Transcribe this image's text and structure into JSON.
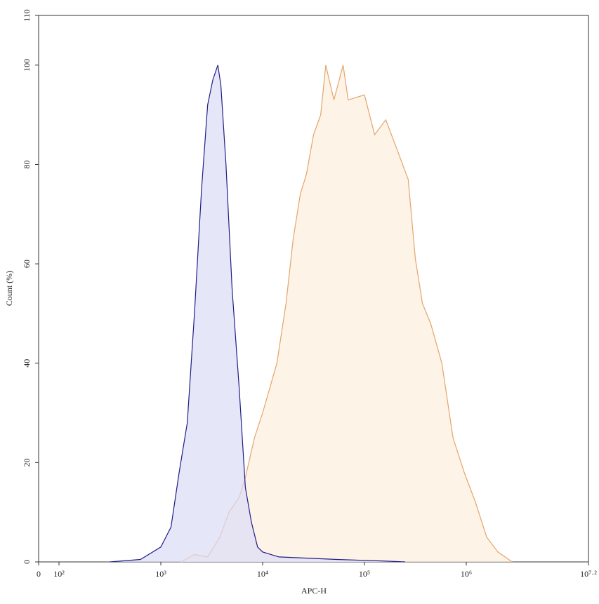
{
  "chart_data": {
    "type": "histogram-overlay",
    "x_label": "APC-H",
    "y_label": "Count (%)",
    "xscale": "log",
    "xlim": [
      0,
      15848932
    ],
    "ylim": [
      0,
      110
    ],
    "xticks": [
      0,
      {
        "value": 100,
        "label": "10²"
      },
      {
        "value": 1000,
        "label": "10³"
      },
      {
        "value": 10000,
        "label": "10⁴"
      },
      {
        "value": 100000,
        "label": "10⁵"
      },
      {
        "value": 1000000,
        "label": "10⁶"
      },
      {
        "value": 15848932,
        "label": "10⁷·²"
      }
    ],
    "yticks": [
      0,
      20,
      40,
      60,
      80,
      100,
      110
    ],
    "series": [
      {
        "color": "#e3a56c",
        "fill": "#fdeedd",
        "x": [
          1585,
          2138,
          2884,
          3802,
          4677,
          5888,
          6761,
          8318,
          10000,
          11749,
          13804,
          16982,
          19953,
          23442,
          26915,
          31623,
          37154,
          41687,
          50119,
          61660,
          69183,
          100000,
          125893,
          162181,
          208930,
          269153,
          316228,
          371535,
          446684,
          575440,
          741310,
          954993,
          1230269,
          1584893,
          2041738,
          2818383
        ],
        "values": [
          0,
          1.5,
          1,
          5,
          10,
          13,
          17,
          25,
          30,
          35,
          40,
          52,
          65,
          74,
          78,
          86,
          90,
          100,
          93,
          100,
          93,
          94,
          86,
          89,
          83,
          77,
          61,
          52,
          48,
          40,
          25,
          18,
          12,
          5,
          2,
          0
        ]
      },
      {
        "color": "#1f1f86",
        "fill": "#dcdcf7",
        "x": [
          316,
          631,
          1000,
          1259,
          1514,
          1820,
          2138,
          2512,
          2884,
          3236,
          3631,
          3890,
          4365,
          5012,
          5888,
          6761,
          7762,
          8913,
          10000,
          14454,
          53703,
          147911,
          251189
        ],
        "values": [
          0,
          0.5,
          3,
          7,
          18,
          28,
          50,
          75,
          92,
          97,
          100,
          96,
          80,
          55,
          35,
          15,
          8,
          3,
          2,
          1,
          0.5,
          0.2,
          0
        ]
      }
    ]
  }
}
